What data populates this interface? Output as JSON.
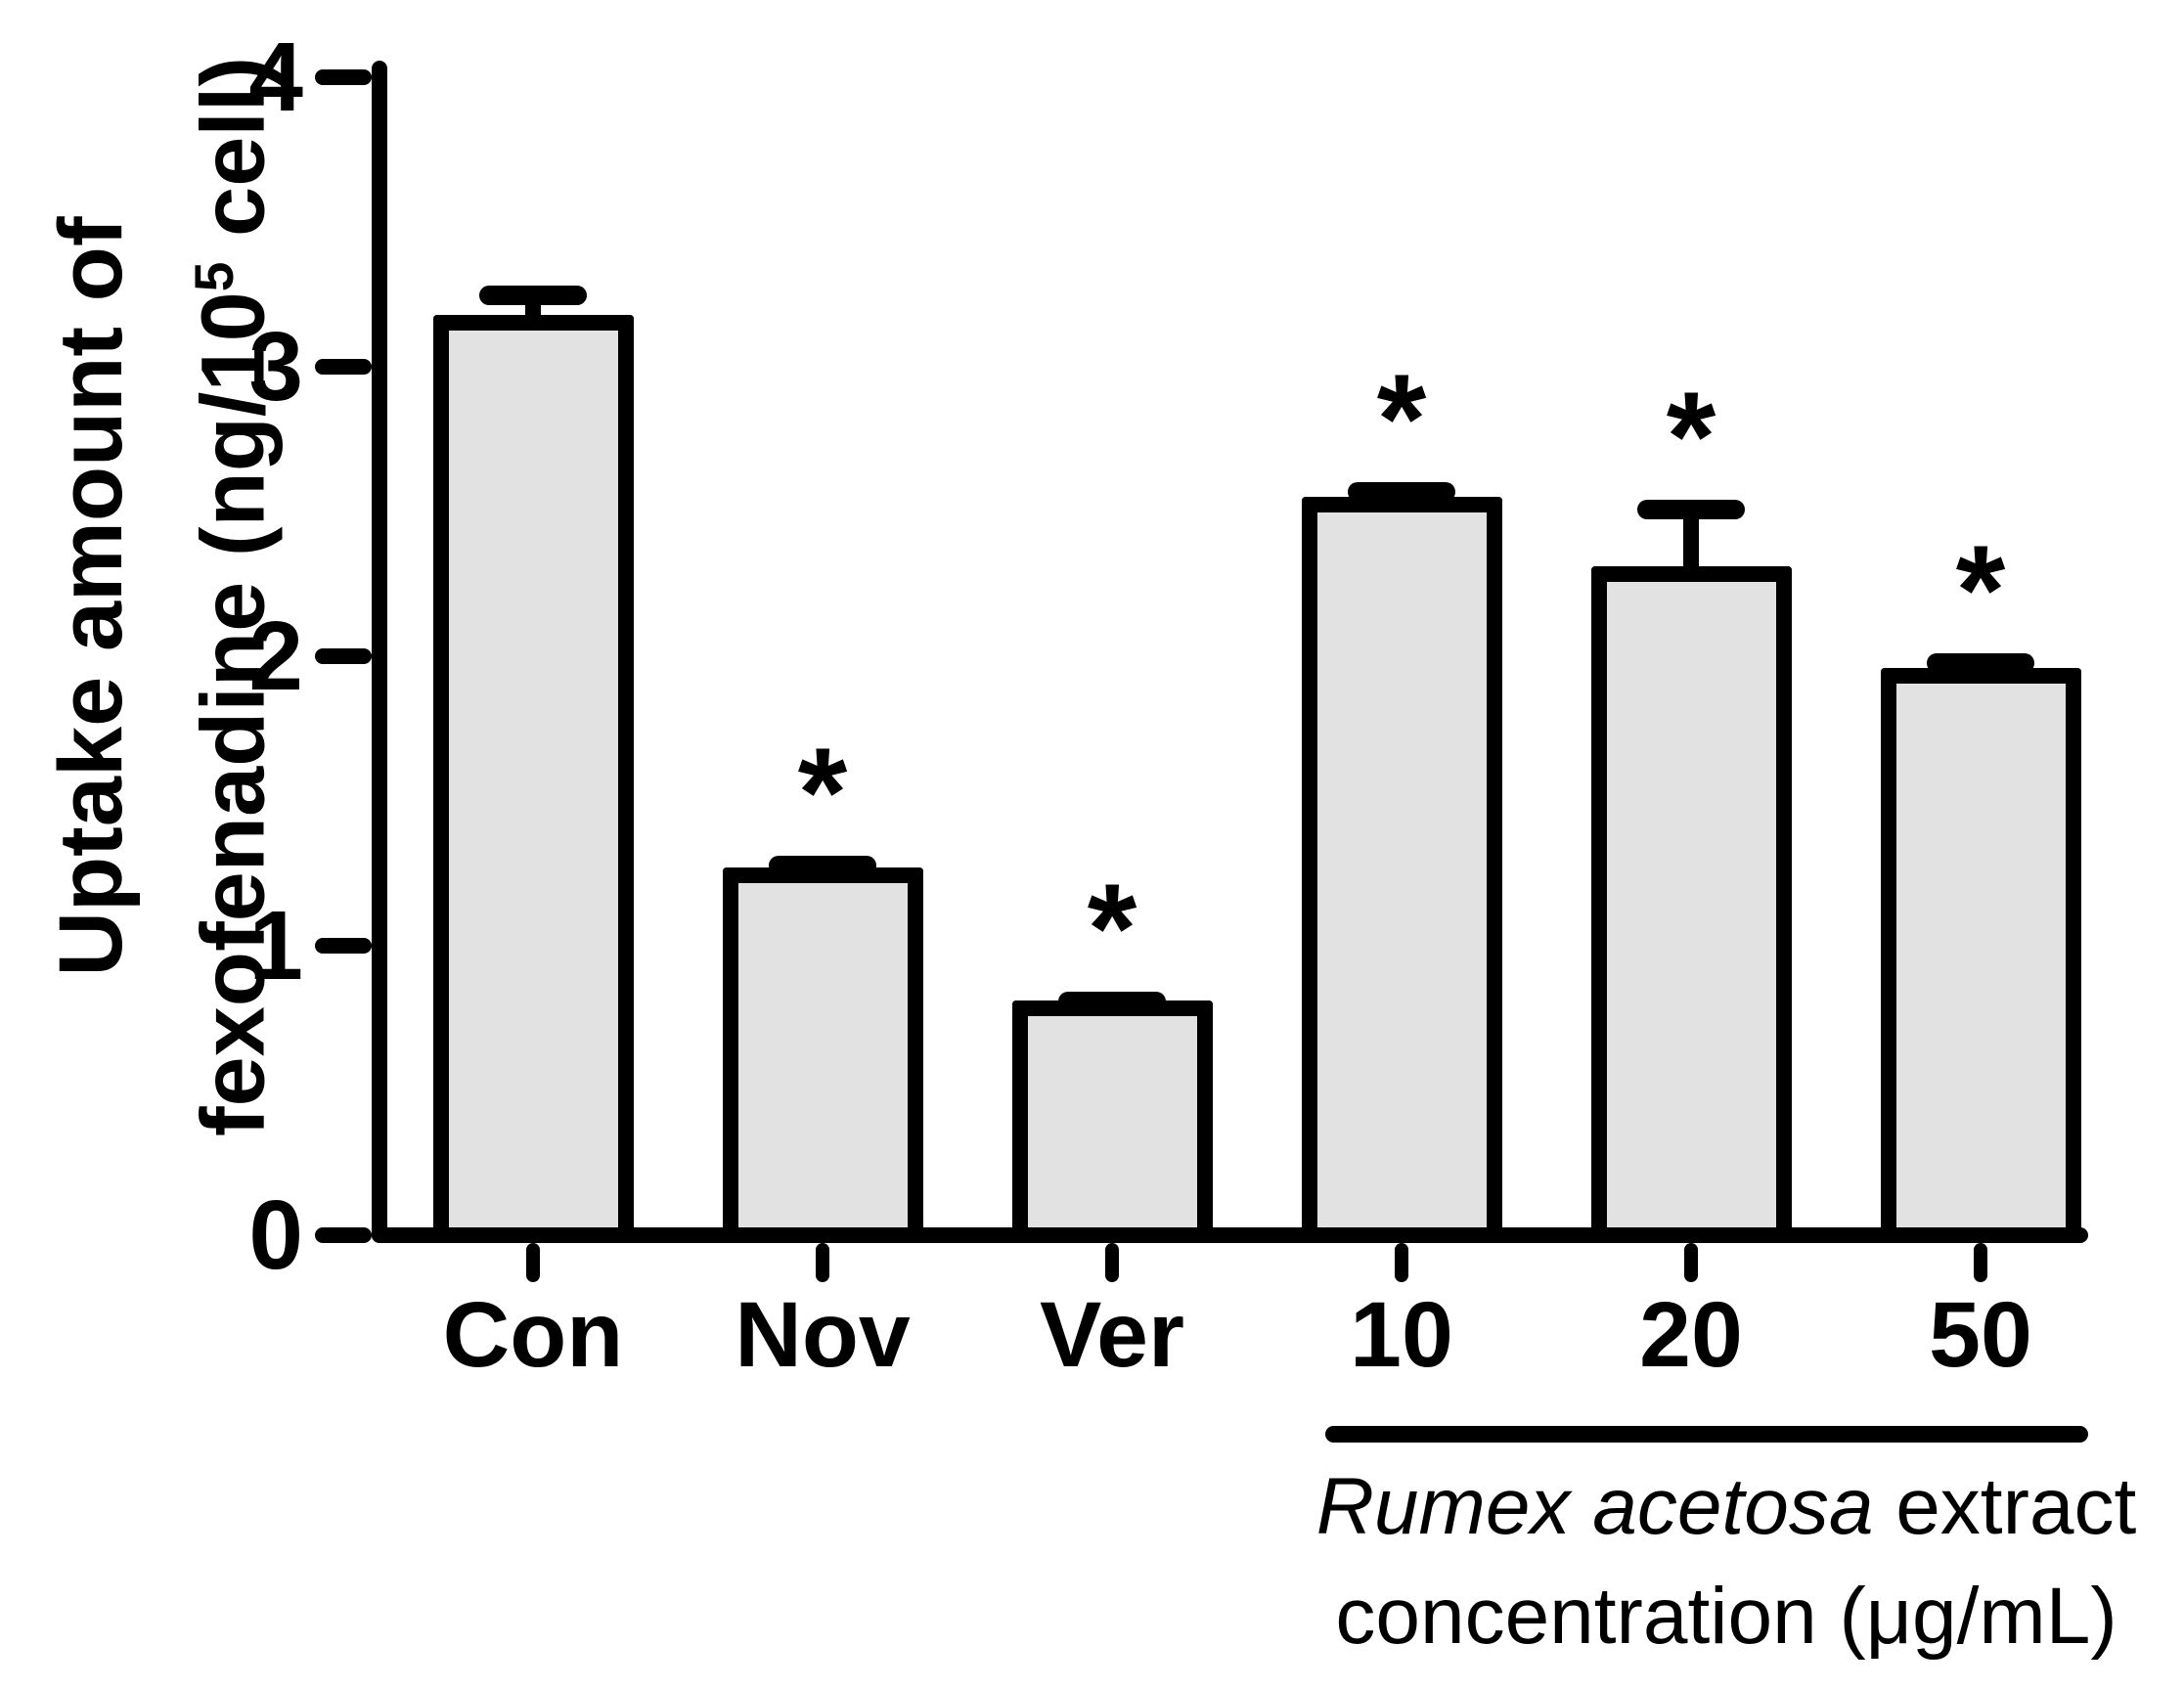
{
  "figure": {
    "significance_marker": "*",
    "y_axis_title": {
      "line1": "Uptake amount of",
      "line2_pre": "fexofenadine (ng/10",
      "line2_sup": "5",
      "line2_post": " cell)"
    },
    "group_annotation": {
      "species_italic": "Rumex acetosa",
      "rest_of_line1": " extract",
      "line2": "concentration (μg/mL)"
    }
  },
  "chart_data": {
    "type": "bar",
    "title": "",
    "xlabel": "",
    "ylabel": "Uptake amount of fexofenadine (ng/10^5 cell)",
    "categories": [
      "Con",
      "Nov",
      "Ver",
      "10",
      "20",
      "50"
    ],
    "values": [
      3.18,
      1.27,
      0.81,
      2.55,
      2.31,
      1.96
    ],
    "upper_errors": [
      0.1,
      0.04,
      0.03,
      0.05,
      0.23,
      0.05
    ],
    "significant": [
      false,
      true,
      true,
      true,
      true,
      true
    ],
    "significance_label": "*",
    "yticks": [
      0,
      1,
      2,
      3,
      4
    ],
    "ylim": [
      0,
      4
    ],
    "grid": false,
    "legend_position": "none",
    "bar_fill_color": "#e2e2e2",
    "bar_outline_color": "#000000",
    "error_bar_style": "upper caps only, thick black",
    "grouped_categories": [
      "10",
      "20",
      "50"
    ],
    "group_label": "Rumex acetosa extract concentration (μg/mL)"
  }
}
